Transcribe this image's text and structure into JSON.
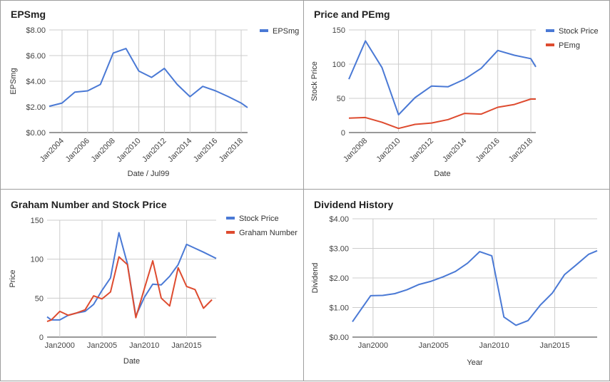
{
  "chart_data": [
    {
      "type": "line",
      "title": "EPSmg",
      "xlabel": "Date / Jul99",
      "ylabel": "EPSmg",
      "x_range": [
        2003,
        2018.5
      ],
      "ylim": [
        0,
        8
      ],
      "y_ticks": [
        0,
        2,
        4,
        6,
        8
      ],
      "y_tick_labels": [
        "$0.00",
        "$2.00",
        "$4.00",
        "$6.00",
        "$8.00"
      ],
      "x_ticks": [
        2004,
        2006,
        2008,
        2010,
        2012,
        2014,
        2016,
        2018
      ],
      "x_tick_labels": [
        "Jan2004",
        "Jan2006",
        "Jan2008",
        "Jan2010",
        "Jan2012",
        "Jan2014",
        "Jan2016",
        "Jan2018"
      ],
      "x_tick_rotated": true,
      "grid": true,
      "legend": "top-right",
      "series": [
        {
          "name": "EPSmg",
          "color": "#4a79d5",
          "x": [
            2003,
            2004,
            2005,
            2006,
            2007,
            2008,
            2009,
            2010,
            2011,
            2012,
            2013,
            2014,
            2015,
            2016,
            2017,
            2018,
            2018.5
          ],
          "y": [
            2.05,
            2.3,
            3.15,
            3.25,
            3.75,
            6.2,
            6.55,
            4.8,
            4.3,
            5.0,
            3.75,
            2.8,
            3.6,
            3.25,
            2.8,
            2.3,
            1.95
          ]
        }
      ]
    },
    {
      "type": "line",
      "title": "Price and PEmg",
      "xlabel": "Date",
      "ylabel": "Stock Price",
      "x_range": [
        2007,
        2018.3
      ],
      "ylim": [
        0,
        150
      ],
      "y_ticks": [
        0,
        50,
        100,
        150
      ],
      "y_tick_labels": [
        "0",
        "50",
        "100",
        "150"
      ],
      "x_ticks": [
        2008,
        2010,
        2012,
        2014,
        2016,
        2018
      ],
      "x_tick_labels": [
        "Jan2008",
        "Jan2010",
        "Jan2012",
        "Jan2014",
        "Jan2016",
        "Jan2018"
      ],
      "x_tick_rotated": true,
      "grid": true,
      "legend": "top-right",
      "series": [
        {
          "name": "Stock Price",
          "color": "#4a79d5",
          "x": [
            2007,
            2008,
            2009,
            2010,
            2011,
            2012,
            2013,
            2014,
            2015,
            2016,
            2017,
            2018,
            2018.3
          ],
          "y": [
            78,
            134,
            95,
            26,
            51,
            68,
            67,
            78,
            94,
            120,
            113,
            108,
            96
          ]
        },
        {
          "name": "PEmg",
          "color": "#de4b2f",
          "x": [
            2007,
            2008,
            2009,
            2010,
            2011,
            2012,
            2013,
            2014,
            2015,
            2016,
            2017,
            2018,
            2018.3
          ],
          "y": [
            21,
            22,
            15,
            6,
            12,
            14,
            19,
            28,
            27,
            37,
            41,
            49,
            49
          ]
        }
      ]
    },
    {
      "type": "line",
      "title": "Graham Number and Stock Price",
      "xlabel": "Date",
      "ylabel": "Price",
      "x_range": [
        1998.5,
        2018.5
      ],
      "ylim": [
        0,
        150
      ],
      "y_ticks": [
        0,
        50,
        100,
        150
      ],
      "y_tick_labels": [
        "0",
        "50",
        "100",
        "150"
      ],
      "x_ticks": [
        2000,
        2005,
        2010,
        2015
      ],
      "x_tick_labels": [
        "Jan2000",
        "Jan2005",
        "Jan2010",
        "Jan2015"
      ],
      "x_tick_rotated": false,
      "grid": true,
      "legend": "top-right",
      "series": [
        {
          "name": "Stock Price",
          "color": "#4a79d5",
          "x": [
            1998.5,
            1999,
            2000,
            2001,
            2002,
            2003,
            2004,
            2005,
            2006,
            2007,
            2008,
            2009,
            2010,
            2011,
            2012,
            2013,
            2014,
            2015,
            2016,
            2017,
            2018.5
          ],
          "y": [
            26,
            22,
            22,
            28,
            31,
            33,
            42,
            60,
            76,
            134,
            94,
            27,
            51,
            68,
            67,
            78,
            93,
            119,
            114,
            109,
            101
          ]
        },
        {
          "name": "Graham Number",
          "color": "#de4b2f",
          "x": [
            1998.5,
            1999,
            2000,
            2001,
            2002,
            2003,
            2004,
            2005,
            2006,
            2007,
            2008,
            2009,
            2010,
            2011,
            2012,
            2013,
            2014,
            2015,
            2016,
            2017,
            2018
          ],
          "y": [
            20,
            22,
            33,
            28,
            31,
            35,
            53,
            49,
            58,
            103,
            93,
            25,
            62,
            98,
            50,
            40,
            89,
            65,
            61,
            37,
            48
          ]
        }
      ]
    },
    {
      "type": "line",
      "title": "Dividend History",
      "xlabel": "Year",
      "ylabel": "Dividend",
      "x_range": [
        1998.3,
        2018.5
      ],
      "ylim": [
        0,
        4
      ],
      "y_ticks": [
        0,
        1,
        2,
        3,
        4
      ],
      "y_tick_labels": [
        "$0.00",
        "$1.00",
        "$2.00",
        "$3.00",
        "$4.00"
      ],
      "x_ticks": [
        2000,
        2005,
        2010,
        2015
      ],
      "x_tick_labels": [
        "Jan2000",
        "Jan2005",
        "Jan2010",
        "Jan2015"
      ],
      "x_tick_rotated": false,
      "grid": true,
      "legend": "none",
      "series": [
        {
          "name": "",
          "color": "#4a79d5",
          "x": [
            1998.3,
            1999.8,
            2000.8,
            2001.8,
            2002.8,
            2003.8,
            2004.8,
            2005.8,
            2006.8,
            2007.8,
            2008.8,
            2009.8,
            2010.8,
            2011.8,
            2012.8,
            2013.8,
            2014.8,
            2015.8,
            2016.8,
            2017.8,
            2018.5
          ],
          "y": [
            0.52,
            1.4,
            1.41,
            1.47,
            1.6,
            1.78,
            1.89,
            2.04,
            2.22,
            2.5,
            2.89,
            2.75,
            0.68,
            0.4,
            0.56,
            1.08,
            1.49,
            2.11,
            2.45,
            2.8,
            2.92
          ]
        }
      ]
    }
  ]
}
